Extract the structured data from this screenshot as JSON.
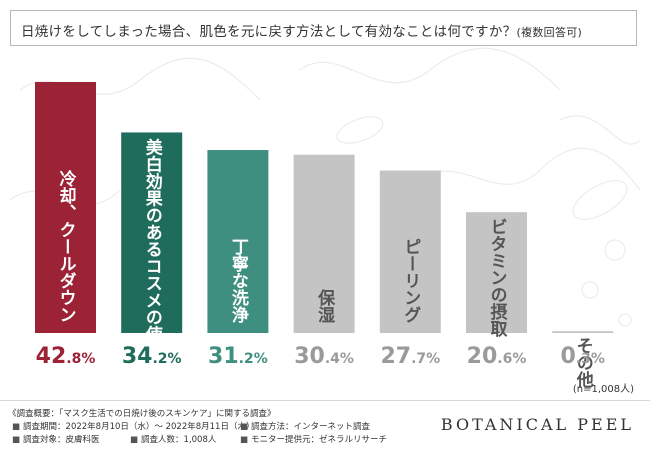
{
  "title": {
    "main": "日焼けをしてしまった場合、肌色を元に戻す方法として有効なことは何ですか？",
    "note": "(複数回答可)"
  },
  "chart_data": {
    "type": "bar",
    "categories": [
      "冷却、クールダウン",
      "美白効果のあるコスメの使用",
      "丁寧な洗浄",
      "保湿",
      "ピーリング",
      "ビタミンの摂取",
      "その他"
    ],
    "values": [
      42.8,
      34.2,
      31.2,
      30.4,
      27.7,
      20.6,
      0.3
    ],
    "value_labels": [
      {
        "int": "42",
        "dec": ".8%"
      },
      {
        "int": "34",
        "dec": ".2%"
      },
      {
        "int": "31",
        "dec": ".2%"
      },
      {
        "int": "30",
        "dec": ".4%"
      },
      {
        "int": "27",
        "dec": ".7%"
      },
      {
        "int": "20",
        "dec": ".6%"
      },
      {
        "int": "0",
        "dec": ".3%"
      }
    ],
    "colors": [
      "#9b2335",
      "#1f6b5c",
      "#3f8f80",
      "#c4c4c4",
      "#c4c4c4",
      "#c4c4c4",
      "#c4c4c4"
    ],
    "label_colors": [
      "#ffffff",
      "#ffffff",
      "#ffffff",
      "#555555",
      "#555555",
      "#555555",
      "#555555"
    ],
    "value_colors": [
      "#9b2335",
      "#1f6b5c",
      "#3f8f80",
      "#9a9a9a",
      "#9a9a9a",
      "#9a9a9a",
      "#9a9a9a"
    ],
    "ylim": [
      0,
      45
    ],
    "grid": false,
    "legend": "none"
  },
  "sample_note": "(n=1,008人)",
  "survey": {
    "title": "《調査概要：「マスク生活での日焼け後のスキンケア」に関する調査》",
    "period": "調査期間：2022年8月10日（水）〜 2022年8月11日（木）",
    "method": "調査方法：インターネット調査",
    "target": "調査対象：皮膚科医",
    "count": "調査人数：1,008人",
    "provider": "モニター提供元：ゼネラルリサーチ"
  },
  "brand": "BOTANICAL PEEL"
}
